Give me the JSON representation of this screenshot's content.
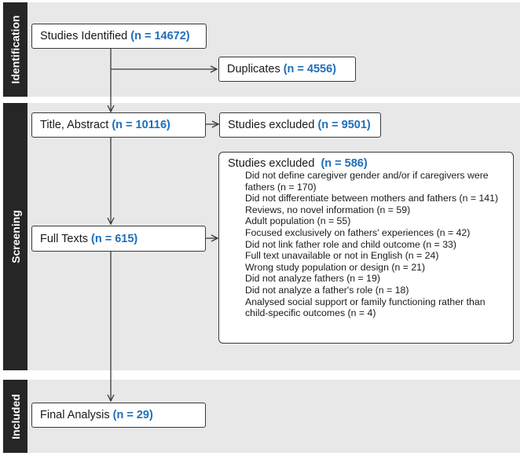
{
  "phases": [
    {
      "label": "Identification"
    },
    {
      "label": "Screening"
    },
    {
      "label": "Included"
    }
  ],
  "identified": {
    "label": "Studies Identified",
    "count": "(n = 14672)"
  },
  "duplicates": {
    "label": "Duplicates",
    "count": "(n = 4556)"
  },
  "title_abstract": {
    "label": "Title, Abstract",
    "count": "(n = 10116)"
  },
  "excluded_screen": {
    "label": "Studies excluded",
    "count": "(n = 9501)"
  },
  "full_texts": {
    "label": "Full Texts",
    "count": "(n = 615)"
  },
  "excluded_full": {
    "label": "Studies excluded",
    "count": "(n = 586)",
    "reasons": [
      "Did not define caregiver gender and/or if caregivers were fathers (n = 170)",
      "Did not differentiate between mothers and fathers (n = 141)",
      "Reviews, no novel information (n = 59)",
      "Adult population (n = 55)",
      "Focused exclusively on fathers' experiences (n = 42)",
      "Did not link father role and child outcome (n = 33)",
      "Full text unavailable or not in English (n = 24)",
      "Wrong study population or design (n = 21)",
      "Did not analyze fathers (n = 19)",
      "Did not analyze a father's role (n = 18)",
      "Analysed  social support or family functioning rather than child-specific outcomes (n = 4)"
    ]
  },
  "final": {
    "label": "Final Analysis",
    "count": "(n = 29)"
  }
}
